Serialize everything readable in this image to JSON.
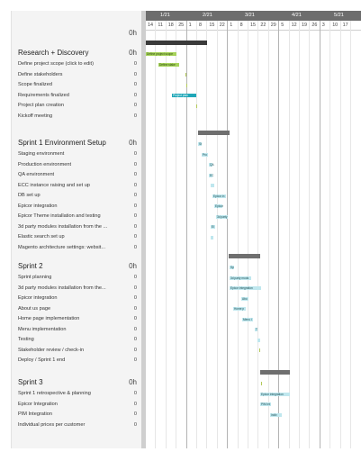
{
  "colors": {
    "summary_bar": "#6f6f6f",
    "summary_bar_active": "#3a3a3a",
    "green_task": "#a6d25a",
    "teal_task": "#20a7b8",
    "light_teal_task": "#bfe7ee",
    "month_band": "#6d6d6d"
  },
  "timeline": {
    "months": [
      "1/21",
      "2/21",
      "3/21",
      "4/21",
      "5/21"
    ],
    "days": [
      "14",
      "11",
      "18",
      "25",
      "1",
      "8",
      "15",
      "22",
      "1",
      "8",
      "15",
      "22",
      "29",
      "5",
      "12",
      "19",
      "26",
      "3",
      "10",
      "17"
    ]
  },
  "project_total": {
    "hours": "0h"
  },
  "sections": [
    {
      "title": "Research + Discovery",
      "hours": "0h",
      "tasks": [
        {
          "name": "Define project scope (click to edit)",
          "hours": "0",
          "bar_label": "Define project scope",
          "type": "green"
        },
        {
          "name": "Define stakeholders",
          "hours": "0",
          "bar_label": "Define stake",
          "type": "green"
        },
        {
          "name": "Scope finalized",
          "hours": "0",
          "bar_label": "",
          "type": "milestone"
        },
        {
          "name": "Requirements finalized",
          "hours": "0",
          "bar_label": "",
          "type": "milestone"
        },
        {
          "name": "Project plan creation",
          "hours": "0",
          "bar_label": "Project plan",
          "type": "teal"
        },
        {
          "name": "Kickoff meeting",
          "hours": "0",
          "bar_label": "",
          "type": "milestone"
        }
      ]
    },
    {
      "title": "Sprint 1 Environment Setup",
      "hours": "0h",
      "tasks": [
        {
          "name": "Staging environment",
          "hours": "0",
          "bar_label": "St",
          "type": "light"
        },
        {
          "name": "Production environment",
          "hours": "0",
          "bar_label": "Pro",
          "type": "light"
        },
        {
          "name": "QA environment",
          "hours": "0",
          "bar_label": "QA",
          "type": "light"
        },
        {
          "name": "ECC instance raising and set up",
          "hours": "0",
          "bar_label": "EC",
          "type": "light"
        },
        {
          "name": "DB set up",
          "hours": "0",
          "bar_label": "",
          "type": "light"
        },
        {
          "name": "Epicor integration",
          "hours": "0",
          "bar_label": "Epicor in",
          "type": "light"
        },
        {
          "name": "Epicor Theme installation and testing",
          "hours": "0",
          "bar_label": "Epicor",
          "type": "light"
        },
        {
          "name": "3d party modules installation from the ...",
          "hours": "0",
          "bar_label": "3d party",
          "type": "light"
        },
        {
          "name": "Elastic search set up",
          "hours": "0",
          "bar_label": "El",
          "type": "light"
        },
        {
          "name": "Magento architecture settings: websit...",
          "hours": "0",
          "bar_label": "",
          "type": "light"
        }
      ]
    },
    {
      "title": "Sprint 2",
      "hours": "0h",
      "tasks": [
        {
          "name": "Sprint planning",
          "hours": "0",
          "bar_label": "Sp",
          "type": "light"
        },
        {
          "name": "3d party modules installation from the...",
          "hours": "0",
          "bar_label": "3d party mods",
          "type": "light"
        },
        {
          "name": "Epicor integration",
          "hours": "0",
          "bar_label": "Epicor integration",
          "type": "light"
        },
        {
          "name": "About us page",
          "hours": "0",
          "bar_label": "Abo",
          "type": "light"
        },
        {
          "name": "Home page implementation",
          "hours": "0",
          "bar_label": "Home p",
          "type": "light"
        },
        {
          "name": "Menu implementation",
          "hours": "0",
          "bar_label": "Menu i",
          "type": "light"
        },
        {
          "name": "Testing",
          "hours": "0",
          "bar_label": "T",
          "type": "light"
        },
        {
          "name": "Stakeholder review / check-in",
          "hours": "0",
          "bar_label": "",
          "type": "light"
        },
        {
          "name": "Deploy / Sprint 1 end",
          "hours": "0",
          "bar_label": "",
          "type": "milestone"
        }
      ]
    },
    {
      "title": "Sprint 3",
      "hours": "0h",
      "tasks": [
        {
          "name": "Sprint 1 retrospective & planning",
          "hours": "0",
          "bar_label": "",
          "type": "milestone"
        },
        {
          "name": "Epicor Integration",
          "hours": "0",
          "bar_label": "Epicor integration",
          "type": "light"
        },
        {
          "name": "PIM Integration",
          "hours": "0",
          "bar_label": "PIM Int",
          "type": "light"
        },
        {
          "name": "Individual prices per customer",
          "hours": "0",
          "bar_label": "Indiv",
          "type": "light"
        }
      ]
    }
  ]
}
